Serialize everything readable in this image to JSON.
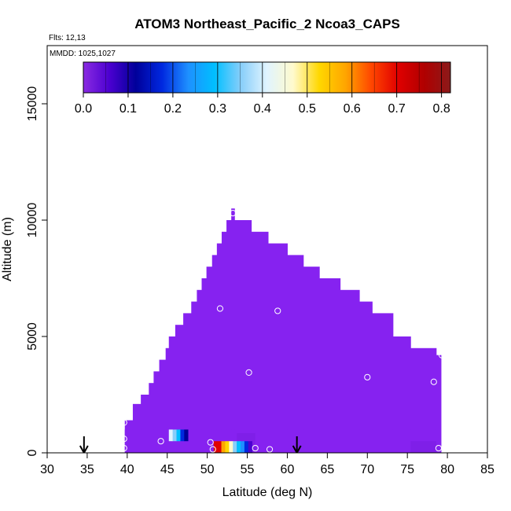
{
  "chart_data": {
    "type": "heatmap",
    "title": "ATOM3 Northeast_Pacific_2 Ncoa3_CAPS",
    "flights_label": "Flts: 12,13",
    "mmdd_label": "MMDD: 1025,1027",
    "xlabel": "Latitude (deg N)",
    "ylabel": "Altitude (m)",
    "xlim": [
      30,
      85
    ],
    "ylim": [
      0,
      17500
    ],
    "x_ticks": [
      "30",
      "35",
      "40",
      "45",
      "50",
      "55",
      "60",
      "65",
      "70",
      "75",
      "80",
      "85"
    ],
    "y_ticks": [
      "0",
      "5000",
      "10000",
      "15000"
    ],
    "colorbar": {
      "range": [
        0,
        0.82
      ],
      "ticks": [
        "0.0",
        "0.1",
        "0.2",
        "0.3",
        "0.4",
        "0.5",
        "0.6",
        "0.7",
        "0.8"
      ],
      "colors": [
        "#8a2be2",
        "#4b00d0",
        "#00009a",
        "#0028e0",
        "#1e90ff",
        "#00bfff",
        "#87cefa",
        "#e0f4ff",
        "#fffacd",
        "#ffd700",
        "#ffa500",
        "#ff4500",
        "#e00000",
        "#b00000",
        "#8b1a1a"
      ]
    },
    "background_color": "#8622f0",
    "column_heights": [
      {
        "x0": 39.7,
        "x1": 40.7,
        "top": 1400
      },
      {
        "x0": 40.7,
        "x1": 41.7,
        "top": 2100
      },
      {
        "x0": 41.7,
        "x1": 42.7,
        "top": 2500
      },
      {
        "x0": 42.7,
        "x1": 43.3,
        "top": 3000
      },
      {
        "x0": 43.3,
        "x1": 44.0,
        "top": 3500
      },
      {
        "x0": 44.0,
        "x1": 44.8,
        "top": 4000
      },
      {
        "x0": 44.8,
        "x1": 45.2,
        "top": 4500
      },
      {
        "x0": 45.2,
        "x1": 46.0,
        "top": 5000
      },
      {
        "x0": 46.0,
        "x1": 47.0,
        "top": 5500
      },
      {
        "x0": 47.0,
        "x1": 48.0,
        "top": 6000
      },
      {
        "x0": 48.0,
        "x1": 48.7,
        "top": 6500
      },
      {
        "x0": 48.7,
        "x1": 49.3,
        "top": 7000
      },
      {
        "x0": 49.3,
        "x1": 49.9,
        "top": 7500
      },
      {
        "x0": 49.9,
        "x1": 50.6,
        "top": 8000
      },
      {
        "x0": 50.6,
        "x1": 51.2,
        "top": 8500
      },
      {
        "x0": 51.2,
        "x1": 51.8,
        "top": 9000
      },
      {
        "x0": 51.8,
        "x1": 52.4,
        "top": 9500
      },
      {
        "x0": 52.4,
        "x1": 53.0,
        "top": 10000
      },
      {
        "x0": 53.0,
        "x1": 53.4,
        "top": 10500
      },
      {
        "x0": 53.4,
        "x1": 55.5,
        "top": 10000
      },
      {
        "x0": 55.5,
        "x1": 57.6,
        "top": 9500
      },
      {
        "x0": 57.6,
        "x1": 60.0,
        "top": 9000
      },
      {
        "x0": 60.0,
        "x1": 62.0,
        "top": 8500
      },
      {
        "x0": 62.0,
        "x1": 64.0,
        "top": 8000
      },
      {
        "x0": 64.0,
        "x1": 66.6,
        "top": 7500
      },
      {
        "x0": 66.6,
        "x1": 69.0,
        "top": 7000
      },
      {
        "x0": 69.0,
        "x1": 70.6,
        "top": 6500
      },
      {
        "x0": 70.6,
        "x1": 73.2,
        "top": 6000
      },
      {
        "x0": 73.2,
        "x1": 75.4,
        "top": 5000
      },
      {
        "x0": 75.4,
        "x1": 78.6,
        "top": 4500
      },
      {
        "x0": 78.6,
        "x1": 79.2,
        "top": 4200
      }
    ],
    "bottom_strip": {
      "x0": 39.7,
      "x1": 79.2,
      "top": 1000
    },
    "high_value_cells": [
      {
        "lat": 45.2,
        "alt0": 500,
        "alt1": 1000,
        "values": [
          0.42,
          0.33,
          0.28,
          0.2,
          0.12
        ]
      },
      {
        "lat": 50.8,
        "alt0": 0,
        "alt1": 500,
        "values": [
          0.72,
          0.68,
          0.6,
          0.53,
          0.45,
          0.37,
          0.31,
          0.22,
          0.18,
          0.05
        ]
      }
    ],
    "sample_points": [
      {
        "lat": 39.6,
        "alt": 1300
      },
      {
        "lat": 39.6,
        "alt": 600
      },
      {
        "lat": 39.6,
        "alt": 200
      },
      {
        "lat": 44.2,
        "alt": 500
      },
      {
        "lat": 50.4,
        "alt": 450
      },
      {
        "lat": 50.7,
        "alt": 150
      },
      {
        "lat": 51.6,
        "alt": 6200
      },
      {
        "lat": 53.2,
        "alt": 10300
      },
      {
        "lat": 55.2,
        "alt": 3450
      },
      {
        "lat": 56.0,
        "alt": 200
      },
      {
        "lat": 57.8,
        "alt": 150
      },
      {
        "lat": 58.8,
        "alt": 6100
      },
      {
        "lat": 70.0,
        "alt": 3250
      },
      {
        "lat": 78.3,
        "alt": 3050
      },
      {
        "lat": 78.9,
        "alt": 200
      },
      {
        "lat": 79.3,
        "alt": 4200
      }
    ],
    "arrows": [
      {
        "lat": 34.6
      },
      {
        "lat": 61.2
      }
    ]
  }
}
